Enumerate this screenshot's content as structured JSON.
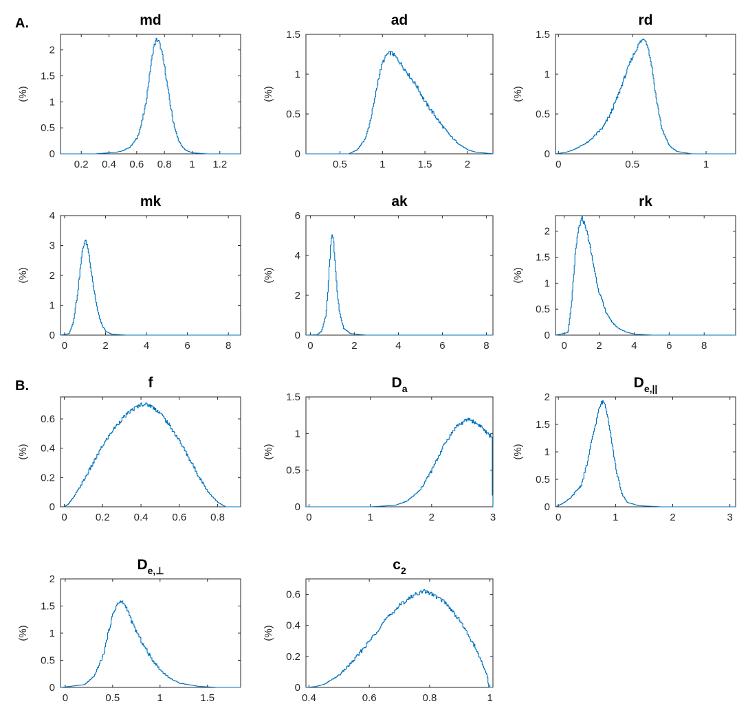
{
  "figure": {
    "panel_labels": [
      "A.",
      "B."
    ],
    "line_color": "#0072BD"
  },
  "chart_data": [
    {
      "type": "line",
      "title": "md",
      "ylabel": "(%)",
      "xlim": [
        0.05,
        1.35
      ],
      "ylim": [
        0,
        2.3
      ],
      "xticks": [
        0.2,
        0.4,
        0.6,
        0.8,
        1,
        1.2
      ],
      "yticks": [
        0,
        0.5,
        1,
        1.5,
        2
      ],
      "series": [
        {
          "x": [
            0.05,
            0.3,
            0.45,
            0.5,
            0.55,
            0.6,
            0.63,
            0.66,
            0.68,
            0.7,
            0.72,
            0.74,
            0.76,
            0.78,
            0.8,
            0.82,
            0.84,
            0.86,
            0.88,
            0.9,
            0.92,
            0.95,
            1.0,
            1.05,
            1.1,
            1.35
          ],
          "y": [
            0,
            0,
            0.03,
            0.06,
            0.13,
            0.3,
            0.55,
            0.9,
            1.3,
            1.7,
            2.05,
            2.2,
            2.15,
            1.95,
            1.65,
            1.3,
            0.95,
            0.65,
            0.42,
            0.26,
            0.16,
            0.07,
            0.02,
            0.01,
            0,
            0
          ]
        }
      ]
    },
    {
      "type": "line",
      "title": "ad",
      "ylabel": "(%)",
      "xlim": [
        0.1,
        2.3
      ],
      "ylim": [
        0,
        1.5
      ],
      "xticks": [
        0.5,
        1,
        1.5,
        2
      ],
      "yticks": [
        0,
        0.5,
        1,
        1.5
      ],
      "series": [
        {
          "x": [
            0.1,
            0.6,
            0.7,
            0.8,
            0.85,
            0.9,
            0.95,
            1.0,
            1.05,
            1.1,
            1.15,
            1.2,
            1.3,
            1.4,
            1.5,
            1.6,
            1.7,
            1.8,
            1.9,
            2.0,
            2.1,
            2.3
          ],
          "y": [
            0,
            0,
            0.05,
            0.2,
            0.4,
            0.65,
            0.95,
            1.15,
            1.25,
            1.27,
            1.22,
            1.15,
            1.0,
            0.85,
            0.65,
            0.5,
            0.35,
            0.22,
            0.12,
            0.05,
            0.02,
            0
          ]
        }
      ]
    },
    {
      "type": "line",
      "title": "rd",
      "ylabel": "(%)",
      "xlim": [
        -0.02,
        1.2
      ],
      "ylim": [
        0,
        1.5
      ],
      "xticks": [
        0,
        0.5,
        1
      ],
      "yticks": [
        0,
        0.5,
        1,
        1.5
      ],
      "series": [
        {
          "x": [
            -0.02,
            0.05,
            0.1,
            0.2,
            0.3,
            0.35,
            0.4,
            0.45,
            0.5,
            0.55,
            0.58,
            0.6,
            0.63,
            0.66,
            0.7,
            0.75,
            0.8,
            0.9,
            1.2
          ],
          "y": [
            0,
            0.02,
            0.05,
            0.15,
            0.33,
            0.5,
            0.72,
            0.98,
            1.22,
            1.4,
            1.45,
            1.38,
            1.1,
            0.7,
            0.3,
            0.1,
            0.03,
            0,
            0
          ]
        }
      ]
    },
    {
      "type": "line",
      "title": "mk",
      "ylabel": "(%)",
      "xlim": [
        -0.2,
        8.6
      ],
      "ylim": [
        0,
        4
      ],
      "xticks": [
        0,
        2,
        4,
        6,
        8
      ],
      "yticks": [
        0,
        1,
        2,
        3,
        4
      ],
      "series": [
        {
          "x": [
            -0.2,
            0.2,
            0.4,
            0.6,
            0.8,
            0.9,
            1.0,
            1.1,
            1.2,
            1.4,
            1.6,
            1.8,
            2.0,
            2.3,
            3,
            8.6
          ],
          "y": [
            0,
            0.05,
            0.4,
            1.3,
            2.5,
            3.0,
            3.15,
            3.0,
            2.6,
            1.6,
            0.8,
            0.35,
            0.12,
            0.03,
            0,
            0
          ]
        }
      ]
    },
    {
      "type": "line",
      "title": "ak",
      "ylabel": "(%)",
      "xlim": [
        -0.2,
        8.3
      ],
      "ylim": [
        0,
        6
      ],
      "xticks": [
        0,
        2,
        4,
        6,
        8
      ],
      "yticks": [
        0,
        2,
        4,
        6
      ],
      "series": [
        {
          "x": [
            -0.2,
            0.3,
            0.5,
            0.7,
            0.8,
            0.9,
            0.95,
            1.0,
            1.05,
            1.1,
            1.2,
            1.3,
            1.5,
            1.8,
            2.5,
            8.3
          ],
          "y": [
            0,
            0.02,
            0.2,
            1.0,
            2.5,
            4.3,
            4.9,
            5.05,
            4.6,
            3.8,
            2.3,
            1.2,
            0.35,
            0.08,
            0,
            0
          ]
        }
      ]
    },
    {
      "type": "line",
      "title": "rk",
      "ylabel": "(%)",
      "xlim": [
        -0.5,
        9.8
      ],
      "ylim": [
        0,
        2.3
      ],
      "xticks": [
        0,
        2,
        4,
        6,
        8
      ],
      "yticks": [
        0,
        0.5,
        1,
        1.5,
        2
      ],
      "series": [
        {
          "x": [
            -0.5,
            0.2,
            0.4,
            0.6,
            0.8,
            1.0,
            1.2,
            1.4,
            1.6,
            1.8,
            2.0,
            2.3,
            2.6,
            3.0,
            3.5,
            4.0,
            5.0,
            9.8
          ],
          "y": [
            0,
            0.05,
            0.6,
            1.5,
            2.05,
            2.25,
            2.1,
            1.8,
            1.45,
            1.1,
            0.8,
            0.5,
            0.3,
            0.15,
            0.06,
            0.02,
            0,
            0
          ]
        }
      ]
    },
    {
      "type": "line",
      "title": "f",
      "ylabel": "(%)",
      "xlim": [
        -0.02,
        0.92
      ],
      "ylim": [
        0,
        0.75
      ],
      "xticks": [
        0,
        0.2,
        0.4,
        0.6,
        0.8
      ],
      "yticks": [
        0,
        0.2,
        0.4,
        0.6
      ],
      "series": [
        {
          "x": [
            0.0,
            0.02,
            0.05,
            0.1,
            0.15,
            0.2,
            0.25,
            0.3,
            0.35,
            0.4,
            0.42,
            0.45,
            0.5,
            0.55,
            0.6,
            0.65,
            0.7,
            0.75,
            0.8,
            0.84,
            0.88,
            0.92
          ],
          "y": [
            0,
            0.02,
            0.07,
            0.18,
            0.3,
            0.42,
            0.52,
            0.6,
            0.66,
            0.7,
            0.7,
            0.69,
            0.64,
            0.55,
            0.45,
            0.33,
            0.21,
            0.1,
            0.03,
            0.0,
            0,
            0
          ]
        }
      ]
    },
    {
      "type": "line",
      "title": "D",
      "title_sub": "a",
      "ylabel": "(%)",
      "xlim": [
        -0.05,
        3.0
      ],
      "ylim": [
        0,
        1.5
      ],
      "xticks": [
        0,
        1,
        2,
        3
      ],
      "yticks": [
        0,
        0.5,
        1,
        1.5
      ],
      "series": [
        {
          "x": [
            -0.05,
            1.0,
            1.4,
            1.6,
            1.8,
            2.0,
            2.2,
            2.4,
            2.6,
            2.8,
            2.9,
            2.98,
            2.99,
            3.0
          ],
          "y": [
            0,
            0,
            0.02,
            0.08,
            0.22,
            0.5,
            0.85,
            1.1,
            1.2,
            1.1,
            1.0,
            0.95,
            0.0,
            0
          ]
        }
      ]
    },
    {
      "type": "line",
      "title": "D",
      "title_sub": "e,||",
      "ylabel": "(%)",
      "xlim": [
        -0.05,
        3.1
      ],
      "ylim": [
        0,
        2
      ],
      "xticks": [
        0,
        1,
        2,
        3
      ],
      "yticks": [
        0,
        0.5,
        1,
        1.5,
        2
      ],
      "series": [
        {
          "x": [
            -0.05,
            0.05,
            0.2,
            0.4,
            0.5,
            0.6,
            0.7,
            0.75,
            0.8,
            0.85,
            0.9,
            1.0,
            1.1,
            1.2,
            1.4,
            1.8,
            3.1
          ],
          "y": [
            0,
            0.05,
            0.15,
            0.4,
            0.8,
            1.3,
            1.75,
            1.9,
            1.9,
            1.7,
            1.4,
            0.7,
            0.25,
            0.08,
            0.02,
            0,
            0
          ]
        }
      ]
    },
    {
      "type": "line",
      "title": "D",
      "title_sub": "e,⊥",
      "ylabel": "(%)",
      "xlim": [
        -0.05,
        1.85
      ],
      "ylim": [
        0,
        2
      ],
      "xticks": [
        0,
        0.5,
        1,
        1.5
      ],
      "yticks": [
        0,
        0.5,
        1,
        1.5,
        2
      ],
      "series": [
        {
          "x": [
            -0.05,
            0.2,
            0.3,
            0.4,
            0.45,
            0.5,
            0.55,
            0.6,
            0.65,
            0.7,
            0.8,
            0.9,
            1.0,
            1.1,
            1.2,
            1.4,
            1.6,
            1.85
          ],
          "y": [
            0,
            0.05,
            0.2,
            0.6,
            1.0,
            1.35,
            1.55,
            1.58,
            1.45,
            1.2,
            0.85,
            0.55,
            0.32,
            0.17,
            0.08,
            0.02,
            0,
            0
          ]
        }
      ]
    },
    {
      "type": "line",
      "title": "c",
      "title_sub": "2",
      "ylabel": "(%)",
      "xlim": [
        0.39,
        1.01
      ],
      "ylim": [
        0,
        0.7
      ],
      "xticks": [
        0.4,
        0.6,
        0.8,
        1
      ],
      "yticks": [
        0,
        0.2,
        0.4,
        0.6
      ],
      "series": [
        {
          "x": [
            0.39,
            0.42,
            0.45,
            0.5,
            0.55,
            0.6,
            0.65,
            0.7,
            0.75,
            0.78,
            0.8,
            0.85,
            0.9,
            0.95,
            0.98,
            0.99,
            0.995,
            1.01
          ],
          "y": [
            0,
            0.005,
            0.02,
            0.08,
            0.18,
            0.3,
            0.43,
            0.53,
            0.6,
            0.62,
            0.61,
            0.55,
            0.43,
            0.26,
            0.12,
            0.08,
            0.0,
            0
          ]
        }
      ]
    }
  ]
}
